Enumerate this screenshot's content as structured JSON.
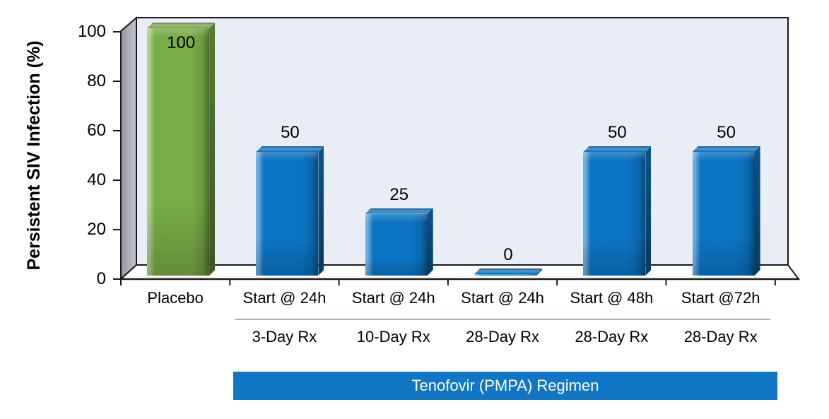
{
  "chart_data": {
    "type": "bar",
    "style": "3d-beveled-columns",
    "title": "",
    "ylabel": "Persistent SIV Infection (%)",
    "xlabel": "",
    "ylim": [
      0,
      100
    ],
    "yticks": [
      0,
      20,
      40,
      60,
      80,
      100
    ],
    "grid": false,
    "legend_position": "none",
    "categories": [
      "Placebo",
      "Start @ 24h",
      "Start @ 24h",
      "Start @ 24h",
      "Start @ 48h",
      "Start @72h"
    ],
    "sub_labels": [
      "",
      "3-Day Rx",
      "10-Day Rx",
      "28-Day Rx",
      "28-Day Rx",
      "28-Day Rx"
    ],
    "values": [
      100,
      50,
      25,
      0,
      50,
      50
    ],
    "value_labels": [
      "100",
      "50",
      "25",
      "0",
      "50",
      "50"
    ],
    "bar_styles": [
      "placebo",
      "treatment",
      "treatment",
      "treatment",
      "treatment",
      "treatment"
    ],
    "group_banner": "Tenofovir (PMPA) Regimen",
    "colors": {
      "placebo_bar": "#7AAC47",
      "treatment_bar": "#0C74C4",
      "banner_bg": "#0F77C5",
      "banner_text": "#FFFFFF",
      "plot_bg": "#E9EDF6",
      "wall_light": "#C6C6CF",
      "wall_dark": "#94949F",
      "floor": "#FDFDFE",
      "outline": "#1A1A1A",
      "separator": "#9DB4CE",
      "label_text": "#000000"
    }
  }
}
